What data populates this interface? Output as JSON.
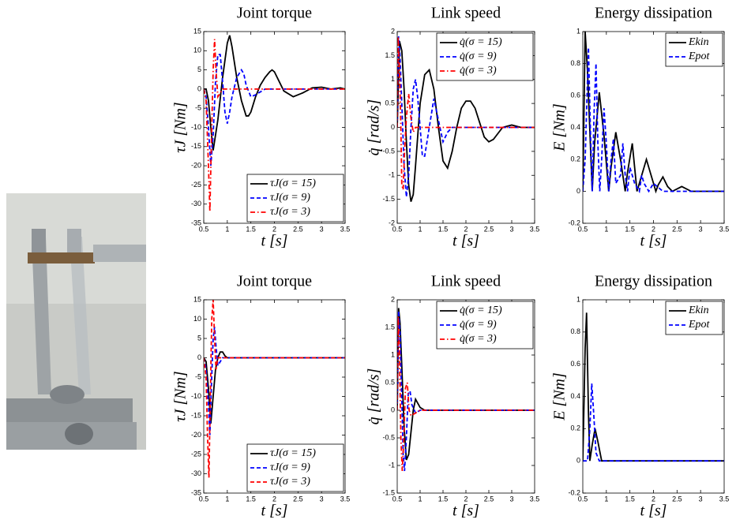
{
  "chart_data": [
    {
      "type": "line",
      "title": "Joint torque",
      "x_label": "t [s]",
      "y_label": "τJ [Nm]",
      "xlim": [
        0.5,
        3.5
      ],
      "xticks": [
        0.5,
        1,
        1.5,
        2,
        2.5,
        3,
        3.5
      ],
      "ylim": [
        -35,
        15
      ],
      "yticks": [
        -35,
        -30,
        -25,
        -20,
        -15,
        -10,
        -5,
        0,
        5,
        10,
        15
      ],
      "legend": "lower right",
      "series": [
        {
          "name": "τJ(σ = 15)",
          "color": "#000000",
          "dash": "solid",
          "x": [
            0.5,
            0.55,
            0.6,
            0.65,
            0.7,
            0.8,
            0.9,
            1.0,
            1.05,
            1.1,
            1.2,
            1.3,
            1.4,
            1.45,
            1.5,
            1.6,
            1.7,
            1.8,
            1.9,
            1.95,
            2.0,
            2.1,
            2.2,
            2.4,
            2.6,
            2.8,
            3.0,
            3.2,
            3.4,
            3.5
          ],
          "values": [
            0,
            0,
            -3,
            -10,
            -16,
            -8,
            3,
            12,
            14,
            11,
            3,
            -3,
            -7,
            -7,
            -6,
            -2,
            1,
            3,
            4.5,
            5,
            4.5,
            2,
            -0.5,
            -2,
            -1,
            0.3,
            0.5,
            0,
            0.3,
            0
          ]
        },
        {
          "name": "τJ(σ = 9)",
          "color": "#0000ff",
          "dash": "dashed",
          "x": [
            0.5,
            0.55,
            0.6,
            0.65,
            0.7,
            0.75,
            0.8,
            0.85,
            0.9,
            0.95,
            1.0,
            1.05,
            1.1,
            1.2,
            1.3,
            1.35,
            1.4,
            1.5,
            1.6,
            1.8,
            2.0,
            2.5,
            3.0,
            3.5
          ],
          "values": [
            0,
            -2,
            -10,
            -20,
            -12,
            2,
            9,
            9,
            2,
            -6,
            -9,
            -6,
            -2,
            3,
            5,
            4,
            1,
            -2,
            -1.5,
            0,
            0,
            0,
            0,
            0
          ]
        },
        {
          "name": "τJ(σ = 3)",
          "color": "#ff0000",
          "dash": "dashdot",
          "x": [
            0.5,
            0.55,
            0.6,
            0.63,
            0.66,
            0.7,
            0.73,
            0.76,
            0.8,
            0.85,
            0.9,
            1.0,
            1.5,
            2.0,
            2.5,
            3.0,
            3.5
          ],
          "values": [
            0,
            -3,
            -20,
            -32,
            -15,
            5,
            13,
            5,
            -2,
            -1,
            0,
            0,
            0,
            0,
            0,
            0,
            0
          ]
        }
      ]
    },
    {
      "type": "line",
      "title": "Link speed",
      "x_label": "t [s]",
      "y_label": "q̇ [rad/s]",
      "xlim": [
        0.5,
        3.5
      ],
      "xticks": [
        0.5,
        1,
        1.5,
        2,
        2.5,
        3,
        3.5
      ],
      "ylim": [
        -2,
        2
      ],
      "yticks": [
        -2,
        -1.5,
        -1,
        -0.5,
        0,
        0.5,
        1,
        1.5,
        2
      ],
      "legend": "upper right",
      "series": [
        {
          "name": "q̇(σ = 15)",
          "color": "#000000",
          "dash": "solid",
          "x": [
            0.5,
            0.55,
            0.6,
            0.65,
            0.7,
            0.75,
            0.8,
            0.85,
            0.9,
            1.0,
            1.1,
            1.2,
            1.3,
            1.4,
            1.5,
            1.6,
            1.7,
            1.8,
            1.9,
            2.0,
            2.1,
            2.2,
            2.3,
            2.4,
            2.5,
            2.6,
            2.8,
            3.0,
            3.2,
            3.5
          ],
          "values": [
            0,
            1.8,
            1.6,
            0.8,
            -0.3,
            -1.2,
            -1.55,
            -1.4,
            -0.8,
            0.5,
            1.1,
            1.2,
            0.8,
            0,
            -0.7,
            -0.85,
            -0.5,
            0,
            0.4,
            0.55,
            0.55,
            0.4,
            0.1,
            -0.2,
            -0.3,
            -0.25,
            0,
            0.05,
            0,
            0
          ]
        },
        {
          "name": "q̇(σ = 9)",
          "color": "#0000ff",
          "dash": "dashed",
          "x": [
            0.5,
            0.53,
            0.56,
            0.6,
            0.65,
            0.7,
            0.75,
            0.8,
            0.85,
            0.9,
            0.95,
            1.0,
            1.05,
            1.1,
            1.2,
            1.3,
            1.4,
            1.5,
            1.6,
            1.7,
            2.0,
            2.5,
            3.0,
            3.5
          ],
          "values": [
            0,
            1.9,
            1.5,
            0.5,
            -0.8,
            -1.45,
            -1,
            0,
            0.8,
            1.0,
            0.6,
            0,
            -0.6,
            -0.6,
            0,
            0.6,
            0.15,
            -0.3,
            -0.1,
            0,
            0,
            0,
            0,
            0
          ]
        },
        {
          "name": "q̇(σ = 3)",
          "color": "#ff0000",
          "dash": "dashdot",
          "x": [
            0.5,
            0.52,
            0.55,
            0.58,
            0.6,
            0.63,
            0.66,
            0.7,
            0.75,
            0.8,
            0.85,
            0.9,
            1.0,
            1.5,
            2.0,
            3.0,
            3.5
          ],
          "values": [
            0,
            1.9,
            1.2,
            0,
            -1.2,
            -1.3,
            -0.5,
            0.2,
            0.7,
            0.2,
            -0.1,
            0,
            0,
            0,
            0,
            0,
            0
          ]
        }
      ]
    },
    {
      "type": "line",
      "title": "Energy dissipation",
      "x_label": "t [s]",
      "y_label": "E [Nm]",
      "xlim": [
        0.5,
        3.5
      ],
      "xticks": [
        0.5,
        1,
        1.5,
        2,
        2.5,
        3,
        3.5
      ],
      "ylim": [
        -0.2,
        1
      ],
      "yticks": [
        -0.2,
        0,
        0.2,
        0.4,
        0.6,
        0.8,
        1
      ],
      "legend": "upper right",
      "series": [
        {
          "name": "Ekin",
          "color": "#000000",
          "dash": "solid",
          "x": [
            0.5,
            0.55,
            0.6,
            0.7,
            0.75,
            0.85,
            0.95,
            1.05,
            1.1,
            1.2,
            1.3,
            1.4,
            1.45,
            1.55,
            1.65,
            1.75,
            1.85,
            1.95,
            2.05,
            2.1,
            2.2,
            2.3,
            2.4,
            2.6,
            2.8,
            3.0,
            3.5
          ],
          "values": [
            0,
            1.0,
            0.75,
            0,
            0.3,
            0.62,
            0.35,
            0,
            0.15,
            0.37,
            0.2,
            0,
            0.12,
            0.3,
            0,
            0.1,
            0.2,
            0.1,
            0,
            0.04,
            0.09,
            0.03,
            0,
            0.03,
            0,
            0,
            0
          ]
        },
        {
          "name": "Epot",
          "color": "#0000ff",
          "dash": "dashed",
          "x": [
            0.5,
            0.55,
            0.62,
            0.66,
            0.7,
            0.74,
            0.78,
            0.82,
            0.86,
            0.9,
            0.95,
            1.0,
            1.05,
            1.1,
            1.15,
            1.2,
            1.3,
            1.35,
            1.4,
            1.45,
            1.5,
            1.6,
            1.7,
            1.75,
            1.8,
            1.9,
            2.0,
            2.2,
            2.5,
            3.0,
            3.5
          ],
          "values": [
            0,
            0.2,
            0.9,
            0.4,
            0,
            0.5,
            0.8,
            0.3,
            0,
            0.2,
            0.52,
            0.3,
            0,
            0.2,
            0.33,
            0.05,
            0.1,
            0.3,
            0.1,
            0,
            0.15,
            0.05,
            0,
            0.1,
            0.05,
            0,
            0.05,
            0,
            0,
            0,
            0
          ]
        }
      ]
    },
    {
      "type": "line",
      "title": "Joint torque",
      "x_label": "t [s]",
      "y_label": "τJ [Nm]",
      "xlim": [
        0.5,
        3.5
      ],
      "xticks": [
        0.5,
        1,
        1.5,
        2,
        2.5,
        3,
        3.5
      ],
      "ylim": [
        -35,
        15
      ],
      "yticks": [
        -35,
        -30,
        -25,
        -20,
        -15,
        -10,
        -5,
        0,
        5,
        10,
        15
      ],
      "legend": "lower right",
      "series": [
        {
          "name": "τJ(σ = 15)",
          "color": "#000000",
          "dash": "solid",
          "x": [
            0.5,
            0.55,
            0.6,
            0.65,
            0.7,
            0.75,
            0.8,
            0.85,
            0.9,
            0.95,
            1.0,
            1.1,
            1.5,
            2,
            2.5,
            3,
            3.5
          ],
          "values": [
            0,
            -1,
            -8,
            -17,
            -10,
            -3,
            0,
            1.5,
            1.5,
            0.5,
            0,
            0,
            0,
            0,
            0,
            0,
            0
          ]
        },
        {
          "name": "τJ(σ = 9)",
          "color": "#0000ff",
          "dash": "dashed",
          "x": [
            0.5,
            0.55,
            0.6,
            0.63,
            0.66,
            0.7,
            0.73,
            0.76,
            0.8,
            0.85,
            0.9,
            1.0,
            1.5,
            2,
            3.5
          ],
          "values": [
            0,
            -3,
            -12,
            -20,
            -8,
            5,
            8,
            3,
            -2,
            -1,
            0,
            0,
            0,
            0,
            0
          ]
        },
        {
          "name": "τJ(σ = 3)",
          "color": "#ff0000",
          "dash": "dashed",
          "x": [
            0.5,
            0.55,
            0.58,
            0.61,
            0.64,
            0.67,
            0.7,
            0.73,
            0.76,
            0.8,
            0.9,
            1.5,
            3.5
          ],
          "values": [
            0,
            -5,
            -20,
            -31,
            -10,
            10,
            15,
            5,
            -3,
            0,
            0,
            0,
            0
          ]
        }
      ]
    },
    {
      "type": "line",
      "title": "Link speed",
      "x_label": "t [s]",
      "y_label": "q̇ [rad/s]",
      "xlim": [
        0.5,
        3.5
      ],
      "xticks": [
        0.5,
        1,
        1.5,
        2,
        2.5,
        3,
        3.5
      ],
      "ylim": [
        -1.5,
        2
      ],
      "yticks": [
        -1.5,
        -1,
        -0.5,
        0,
        0.5,
        1,
        1.5,
        2
      ],
      "legend": "upper right",
      "series": [
        {
          "name": "q̇(σ = 15)",
          "color": "#000000",
          "dash": "solid",
          "x": [
            0.5,
            0.53,
            0.56,
            0.6,
            0.65,
            0.7,
            0.75,
            0.8,
            0.85,
            0.9,
            1.0,
            1.1,
            1.2,
            1.5,
            2.0,
            3.5
          ],
          "values": [
            0,
            1.85,
            1.6,
            0.8,
            -0.3,
            -0.9,
            -0.8,
            -0.4,
            0,
            0.2,
            0.05,
            0,
            0,
            0,
            0,
            0
          ]
        },
        {
          "name": "q̇(σ = 9)",
          "color": "#0000ff",
          "dash": "dashed",
          "x": [
            0.5,
            0.53,
            0.56,
            0.6,
            0.63,
            0.66,
            0.7,
            0.74,
            0.78,
            0.82,
            0.9,
            1.0,
            1.5,
            3.5
          ],
          "values": [
            0,
            1.8,
            1.4,
            0.2,
            -0.8,
            -1.1,
            -0.5,
            0.3,
            0.35,
            0.1,
            -0.05,
            0,
            0,
            0
          ]
        },
        {
          "name": "q̇(σ = 3)",
          "color": "#ff0000",
          "dash": "dashdot",
          "x": [
            0.5,
            0.52,
            0.55,
            0.58,
            0.61,
            0.64,
            0.68,
            0.72,
            0.76,
            0.8,
            1.0,
            3.5
          ],
          "values": [
            0,
            1.7,
            1.0,
            -0.5,
            -1.1,
            -0.6,
            0.4,
            0.5,
            0,
            -0.1,
            0,
            0
          ]
        }
      ]
    },
    {
      "type": "line",
      "title": "Energy dissipation",
      "x_label": "t [s]",
      "y_label": "E [Nm]",
      "xlim": [
        0.5,
        3.5
      ],
      "xticks": [
        0.5,
        1,
        1.5,
        2,
        2.5,
        3,
        3.5
      ],
      "ylim": [
        -0.2,
        1
      ],
      "yticks": [
        -0.2,
        0,
        0.2,
        0.4,
        0.6,
        0.8,
        1
      ],
      "legend": "upper right",
      "series": [
        {
          "name": "Ekin",
          "color": "#000000",
          "dash": "solid",
          "x": [
            0.5,
            0.55,
            0.58,
            0.62,
            0.65,
            0.7,
            0.76,
            0.82,
            0.9,
            1.0,
            3.5
          ],
          "values": [
            0,
            0.7,
            0.92,
            0.3,
            0,
            0.1,
            0.2,
            0.12,
            0,
            0,
            0
          ]
        },
        {
          "name": "Epot",
          "color": "#0000ff",
          "dash": "dashed",
          "x": [
            0.5,
            0.6,
            0.65,
            0.69,
            0.73,
            0.78,
            0.85,
            1.0,
            3.5
          ],
          "values": [
            0,
            0,
            0.2,
            0.48,
            0.3,
            0.05,
            0,
            0,
            0
          ]
        }
      ]
    }
  ]
}
